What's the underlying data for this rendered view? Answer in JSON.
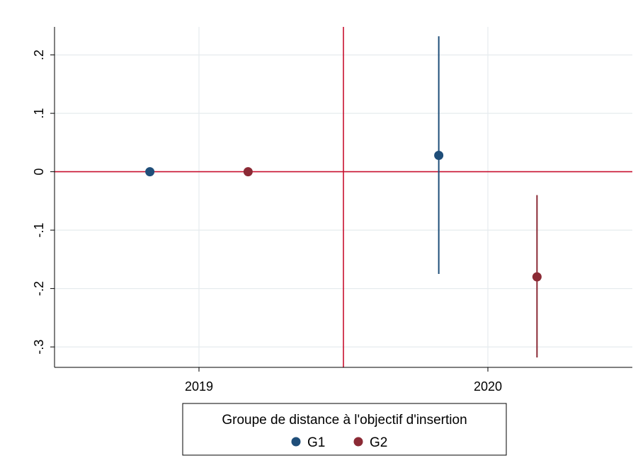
{
  "chart_data": {
    "type": "scatter",
    "x_categories": [
      "2019",
      "2020"
    ],
    "ylim": [
      -0.335,
      0.248
    ],
    "y_ticks": [
      {
        "value": 0.2,
        "label": ".2"
      },
      {
        "value": 0.1,
        "label": ".1"
      },
      {
        "value": 0,
        "label": "0"
      },
      {
        "value": -0.1,
        "label": "-.1"
      },
      {
        "value": -0.2,
        "label": "-.2"
      },
      {
        "value": -0.3,
        "label": "-.3"
      }
    ],
    "x_ticks": [
      {
        "value": 2019,
        "label": "2019"
      },
      {
        "value": 2020,
        "label": "2020"
      }
    ],
    "xlim": [
      2018.5,
      2020.5
    ],
    "reference_lines": {
      "horizontal_y": 0,
      "vertical_x": 2019.5,
      "color": "#c8102e"
    },
    "grid": true,
    "legend": {
      "title": "Groupe de distance à l'objectif d'insertion",
      "position": "bottom"
    },
    "series": [
      {
        "name": "G1",
        "color": "#1f4e79",
        "points": [
          {
            "x": 2018.83,
            "y": 0,
            "ci": null
          },
          {
            "x": 2019.83,
            "y": 0.028,
            "ci": [
              -0.175,
              0.232
            ]
          }
        ]
      },
      {
        "name": "G2",
        "color": "#8b2a35",
        "points": [
          {
            "x": 2019.17,
            "y": 0,
            "ci": null
          },
          {
            "x": 2020.17,
            "y": -0.18,
            "ci": [
              -0.318,
              -0.04
            ]
          }
        ]
      }
    ]
  }
}
